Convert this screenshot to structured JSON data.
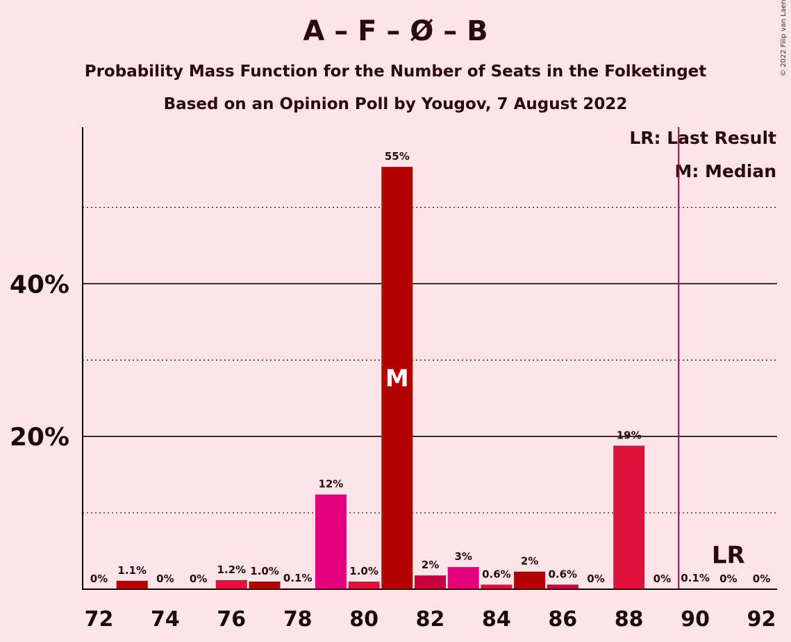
{
  "chart_data": {
    "type": "bar",
    "title": "A – F – Ø – B",
    "subtitle_1": "Probability Mass Function for the Number of Seats in the Folketinget",
    "subtitle_2": "Based on an Opinion Poll by Yougov, 7 August 2022",
    "copyright": "© 2022 Filip van Laenen",
    "legend": {
      "last_result": "LR: Last Result",
      "median": "M: Median",
      "placement": "top-right"
    },
    "x": [
      72,
      73,
      74,
      75,
      76,
      77,
      78,
      79,
      80,
      81,
      82,
      83,
      84,
      85,
      86,
      87,
      88,
      89,
      90,
      91,
      92
    ],
    "values": [
      0,
      1.1,
      0,
      0,
      1.2,
      1.0,
      0.1,
      12.4,
      1.0,
      55.3,
      1.8,
      2.9,
      0.6,
      2.3,
      0.6,
      0,
      18.8,
      0,
      0.1,
      0,
      0
    ],
    "value_labels": [
      "0%",
      "1.1%",
      "0%",
      "0%",
      "1.2%",
      "1.0%",
      "0.1%",
      "12%",
      "1.0%",
      "55%",
      "2%",
      "3%",
      "0.6%",
      "2%",
      "0.6%",
      "0%",
      "19%",
      "0%",
      "0.1%",
      "0%",
      "0%"
    ],
    "bar_colors": [
      "#b30000",
      "#b30000",
      "#b30000",
      "#b30000",
      "#e0123c",
      "#b30000",
      "#b30000",
      "#e3007e",
      "#e0123c",
      "#b30000",
      "#c8003e",
      "#e3007e",
      "#e0123c",
      "#b30000",
      "#c8003e",
      "#b30000",
      "#e0123c",
      "#b30000",
      "#b30000",
      "#b30000",
      "#b30000"
    ],
    "x_ticks": [
      72,
      74,
      76,
      78,
      80,
      82,
      84,
      86,
      88,
      90,
      92
    ],
    "x_tick_labels": [
      "72",
      "74",
      "76",
      "78",
      "80",
      "82",
      "84",
      "86",
      "88",
      "90",
      "92"
    ],
    "y_ticks": [
      20,
      40
    ],
    "y_tick_labels": [
      "20%",
      "40%"
    ],
    "y_minor_gridlines": [
      10,
      30,
      50
    ],
    "ylim": [
      0,
      60.5
    ],
    "median_seat": 81,
    "median_label": "M",
    "last_result_seat": 89.5,
    "last_result_label": "LR",
    "last_result_label_seat": 91,
    "lr_line_color": "#a0003a"
  }
}
